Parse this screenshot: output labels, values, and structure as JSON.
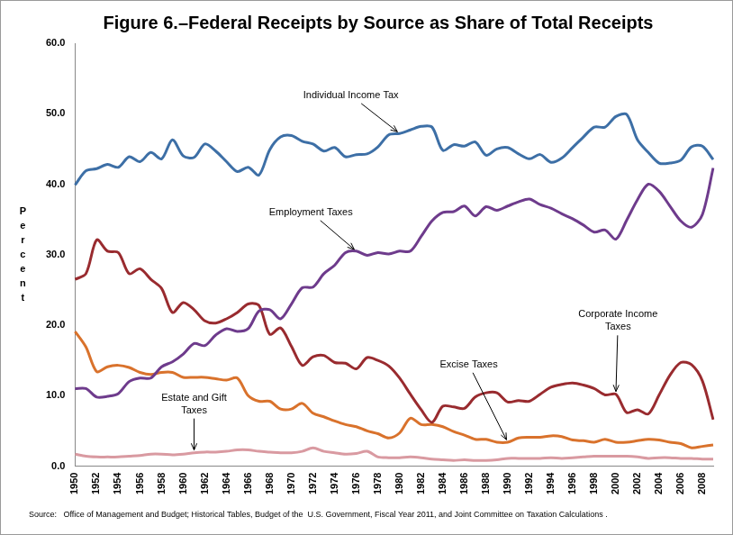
{
  "chart_data": {
    "type": "line",
    "title": "Figure 6.–Federal Receipts by Source as Share of Total Receipts",
    "y_label": "Percent",
    "source": "Source:   Office of Management and Budget; Historical Tables, Budget of the  U.S. Government, Fiscal Year 2011, and Joint Committee on Taxation Calculations .",
    "categories": [
      "1950",
      null,
      "1952",
      null,
      "1954",
      null,
      "1956",
      null,
      "1958",
      null,
      "1960",
      null,
      "1962",
      null,
      "1964",
      null,
      "1966",
      null,
      "1968",
      null,
      "1970",
      null,
      "1972",
      null,
      "1974",
      null,
      "1976",
      null,
      "1978",
      null,
      "1980",
      null,
      "1982",
      null,
      "1984",
      null,
      "1986",
      null,
      "1988",
      null,
      "1990",
      null,
      "1992",
      null,
      "1994",
      null,
      "1996",
      null,
      "1998",
      null,
      "2000",
      null,
      "2002",
      null,
      "2004",
      null,
      "2006",
      null,
      "2008",
      null
    ],
    "series": [
      {
        "name": "Individual Income Tax",
        "color": "#3d6fa6",
        "values": [
          39.9,
          41.9,
          42.2,
          42.8,
          42.4,
          43.9,
          43.2,
          44.5,
          43.6,
          46.3,
          44.0,
          43.8,
          45.7,
          44.7,
          43.2,
          41.8,
          42.4,
          41.3,
          44.9,
          46.7,
          46.9,
          46.1,
          45.7,
          44.7,
          45.2,
          43.9,
          44.2,
          44.3,
          45.3,
          47.0,
          47.2,
          47.7,
          48.2,
          48.1,
          44.8,
          45.6,
          45.4,
          46.0,
          44.1,
          45.0,
          45.2,
          44.3,
          43.6,
          44.2,
          43.1,
          43.7,
          45.2,
          46.7,
          48.1,
          48.1,
          49.6,
          49.9,
          46.3,
          44.5,
          43.0,
          43.0,
          43.4,
          45.3,
          45.4,
          43.5
        ]
      },
      {
        "name": "Employment Taxes",
        "color": "#6e3b8c",
        "values": [
          11.0,
          11.0,
          9.8,
          9.9,
          10.3,
          12.0,
          12.5,
          12.5,
          14.1,
          14.8,
          15.9,
          17.4,
          17.1,
          18.6,
          19.5,
          19.1,
          19.5,
          22.0,
          22.2,
          20.9,
          23.0,
          25.3,
          25.4,
          27.3,
          28.5,
          30.3,
          30.5,
          29.9,
          30.3,
          30.1,
          30.5,
          30.5,
          32.6,
          34.8,
          36.0,
          36.1,
          36.9,
          35.5,
          36.8,
          36.3,
          36.9,
          37.5,
          37.9,
          37.1,
          36.6,
          35.8,
          35.1,
          34.2,
          33.2,
          33.5,
          32.2,
          34.9,
          37.8,
          40.0,
          39.0,
          36.9,
          34.8,
          33.9,
          35.7,
          42.3
        ]
      },
      {
        "name": "Corporate Income Taxes",
        "color": "#992b2f",
        "values": [
          26.5,
          27.3,
          32.1,
          30.5,
          30.3,
          27.3,
          28.0,
          26.5,
          25.2,
          21.8,
          23.2,
          22.2,
          20.6,
          20.3,
          20.9,
          21.8,
          23.0,
          22.8,
          18.7,
          19.6,
          17.0,
          14.3,
          15.5,
          15.7,
          14.7,
          14.6,
          13.8,
          15.4,
          15.0,
          14.2,
          12.5,
          10.2,
          8.0,
          6.2,
          8.5,
          8.4,
          8.2,
          9.8,
          10.4,
          10.4,
          9.1,
          9.3,
          9.2,
          10.2,
          11.2,
          11.6,
          11.8,
          11.5,
          11.0,
          10.1,
          10.2,
          7.6,
          8.0,
          7.4,
          10.1,
          12.9,
          14.7,
          14.4,
          12.1,
          6.6
        ]
      },
      {
        "name": "Excise Taxes",
        "color": "#d9722c",
        "values": [
          19.1,
          16.9,
          13.4,
          14.1,
          14.3,
          14.0,
          13.3,
          13.0,
          13.3,
          13.3,
          12.6,
          12.6,
          12.6,
          12.4,
          12.2,
          12.5,
          10.0,
          9.2,
          9.2,
          8.1,
          8.1,
          8.9,
          7.5,
          7.0,
          6.4,
          5.9,
          5.6,
          5.0,
          4.6,
          4.0,
          4.7,
          6.8,
          5.9,
          5.9,
          5.6,
          4.9,
          4.4,
          3.8,
          3.8,
          3.4,
          3.4,
          4.0,
          4.1,
          4.1,
          4.3,
          4.2,
          3.7,
          3.6,
          3.4,
          3.8,
          3.4,
          3.4,
          3.6,
          3.8,
          3.7,
          3.4,
          3.2,
          2.6,
          2.8,
          3.0
        ]
      },
      {
        "name": "Estate and Gift Taxes",
        "color": "#d99aa1",
        "values": [
          1.7,
          1.4,
          1.3,
          1.3,
          1.3,
          1.4,
          1.5,
          1.7,
          1.7,
          1.6,
          1.7,
          1.9,
          2.0,
          2.0,
          2.1,
          2.3,
          2.3,
          2.1,
          2.0,
          1.9,
          1.9,
          2.1,
          2.6,
          2.1,
          1.9,
          1.7,
          1.8,
          2.1,
          1.3,
          1.2,
          1.2,
          1.3,
          1.2,
          1.0,
          0.9,
          0.8,
          0.9,
          0.8,
          0.8,
          0.9,
          1.1,
          1.1,
          1.1,
          1.1,
          1.2,
          1.1,
          1.2,
          1.3,
          1.4,
          1.4,
          1.4,
          1.4,
          1.3,
          1.1,
          1.2,
          1.2,
          1.1,
          1.1,
          1.0,
          1.0
        ]
      }
    ],
    "ylim": [
      0,
      60
    ],
    "yticks": [
      {
        "value": 0,
        "label": "0.0"
      },
      {
        "value": 10,
        "label": "10.0"
      },
      {
        "value": 20,
        "label": "20.0"
      },
      {
        "value": 30,
        "label": "30.0"
      },
      {
        "value": 40,
        "label": "40.0"
      },
      {
        "value": 50,
        "label": "50.0"
      },
      {
        "value": 60,
        "label": "60.0"
      }
    ],
    "grid": false
  }
}
